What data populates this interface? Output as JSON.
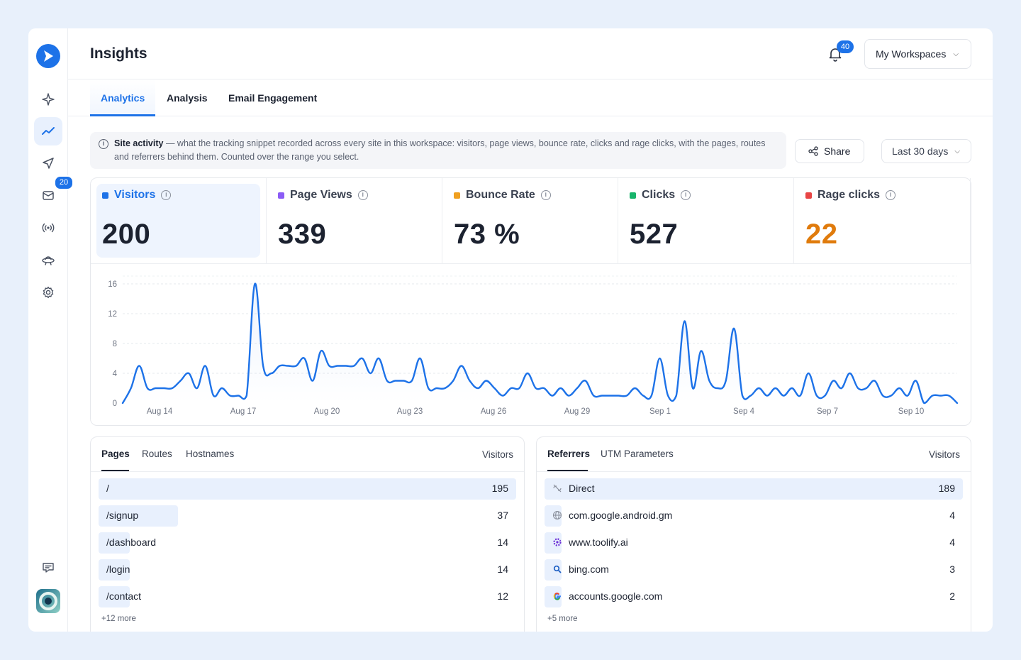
{
  "header": {
    "title": "Insights",
    "notification_count": "40",
    "workspace_label": "My Workspaces"
  },
  "sidebar": {
    "inbox_badge": "20"
  },
  "tabs": [
    {
      "label": "Analytics",
      "active": true
    },
    {
      "label": "Analysis"
    },
    {
      "label": "Email Engagement"
    }
  ],
  "info": {
    "title": "Site activity",
    "text": " — what the tracking snippet recorded across every site in this workspace: visitors, page views, bounce rate, clicks and rage clicks, with the pages, routes and referrers behind them. Counted over the range you select."
  },
  "toolbar": {
    "share_label": "Share",
    "range_label": "Last 30 days"
  },
  "stats": [
    {
      "label": "Visitors",
      "value": "200",
      "color": "#1d72e8"
    },
    {
      "label": "Page Views",
      "value": "339",
      "color": "#8b5cf6"
    },
    {
      "label": "Bounce Rate",
      "value": "73 %",
      "color": "#f0a020"
    },
    {
      "label": "Clicks",
      "value": "527",
      "color": "#18b46b"
    },
    {
      "label": "Rage clicks",
      "value": "22",
      "color": "#e84545",
      "value_color": "#e07b0c"
    }
  ],
  "chart_data": {
    "type": "line",
    "series": [
      {
        "values": [
          0,
          2,
          5,
          2,
          2,
          2,
          2,
          3,
          4,
          2,
          5,
          1,
          2,
          1,
          1,
          1,
          16,
          5,
          4,
          5,
          5,
          5,
          6,
          3,
          7,
          5,
          5,
          5,
          5,
          6,
          4,
          6,
          3,
          3,
          3,
          3,
          6,
          2,
          2,
          2,
          3,
          5,
          3,
          2,
          3,
          2,
          1,
          2,
          2,
          4,
          2,
          2,
          1,
          2,
          1,
          2,
          3,
          1,
          1,
          1,
          1,
          1,
          2,
          1,
          1,
          6,
          1,
          1,
          11,
          2,
          7,
          3,
          2,
          3,
          10,
          1,
          1,
          2,
          1,
          2,
          1,
          2,
          1,
          4,
          1,
          1,
          3,
          2,
          4,
          2,
          2,
          3,
          1,
          1,
          2,
          1,
          3,
          0,
          1,
          1,
          1,
          0
        ]
      }
    ],
    "x_ticks": [
      "Aug 14",
      "Aug 17",
      "Aug 20",
      "Aug 23",
      "Aug 26",
      "Aug 29",
      "Sep 1",
      "Sep 4",
      "Sep 7",
      "Sep 10"
    ],
    "y_ticks": [
      0,
      4,
      8,
      12,
      16
    ],
    "ylim": [
      0,
      16
    ],
    "grid": true,
    "color": "#1d72e8"
  },
  "pages": {
    "tabs": [
      "Pages",
      "Routes",
      "Hostnames"
    ],
    "col_label": "Visitors",
    "rows": [
      {
        "label": "/",
        "count": 195
      },
      {
        "label": "/signup",
        "count": 37
      },
      {
        "label": "/dashboard",
        "count": 14
      },
      {
        "label": "/login",
        "count": 14
      },
      {
        "label": "/contact",
        "count": 12
      }
    ],
    "more": "+12 more"
  },
  "referrers": {
    "tabs": [
      "Referrers",
      "UTM Parameters"
    ],
    "col_label": "Visitors",
    "rows": [
      {
        "label": "Direct",
        "count": 189,
        "icon": "link-off-icon"
      },
      {
        "label": "com.google.android.gm",
        "count": 4,
        "icon": "globe-icon"
      },
      {
        "label": "www.toolify.ai",
        "count": 4,
        "icon": "toolify-icon"
      },
      {
        "label": "bing.com",
        "count": 3,
        "icon": "search-icon"
      },
      {
        "label": "accounts.google.com",
        "count": 2,
        "icon": "google-icon"
      }
    ],
    "more": "+5 more"
  }
}
